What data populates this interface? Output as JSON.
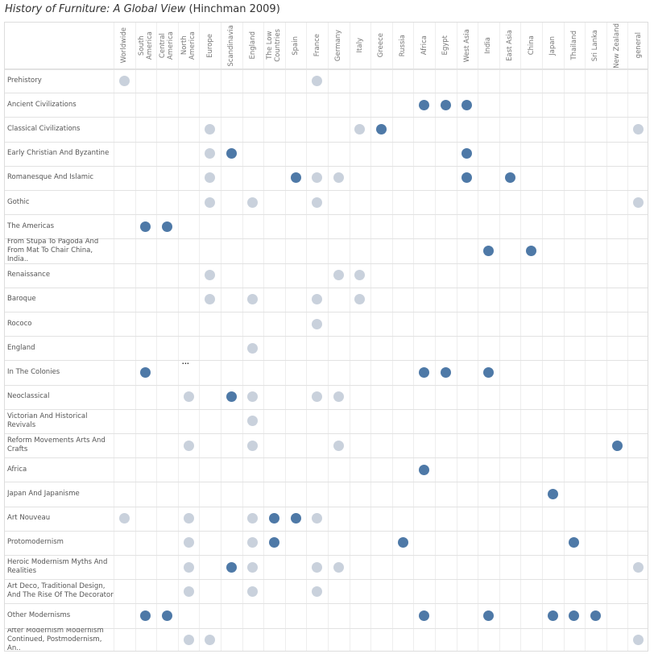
{
  "title": {
    "main": "History of Furniture: A Global View",
    "sub": "(Hinchman 2009)"
  },
  "chart_data": {
    "type": "scatter",
    "subtype": "matrix",
    "colors": {
      "dark": "#4e79a7",
      "light": "#c9d1dc"
    },
    "columns": [
      "Worldwide",
      "South\nAmerica",
      "Central\nAmerica",
      "North\nAmerica",
      "Europe",
      "Scandinavia",
      "England",
      "The Low\nCountries",
      "Spain",
      "France",
      "Germany",
      "Italy",
      "Greece",
      "Russia",
      "Africa",
      "Egypt",
      "West Asia",
      "India",
      "East Asia",
      "China",
      "Japan",
      "Thailand",
      "Sri Lanka",
      "New Zealand",
      "general"
    ],
    "rows": [
      {
        "label": "Prehistory",
        "dots": {
          "0": "light",
          "9": "light"
        }
      },
      {
        "label": "Ancient Civilizations",
        "dots": {
          "14": "dark",
          "15": "dark",
          "16": "dark"
        }
      },
      {
        "label": "Classical Civilizations",
        "dots": {
          "4": "light",
          "11": "light",
          "12": "dark",
          "24": "light"
        }
      },
      {
        "label": "Early Christian And Byzantine",
        "dots": {
          "4": "light",
          "5": "dark",
          "16": "dark"
        }
      },
      {
        "label": "Romanesque And Islamic",
        "dots": {
          "4": "light",
          "8": "dark",
          "9": "light",
          "10": "light",
          "16": "dark",
          "18": "dark"
        }
      },
      {
        "label": "Gothic",
        "dots": {
          "4": "light",
          "6": "light",
          "9": "light",
          "24": "light"
        }
      },
      {
        "label": "The Americas",
        "dots": {
          "1": "dark",
          "2": "dark"
        }
      },
      {
        "label": "From Stupa To Pagoda And From Mat To Chair China, India..",
        "dots": {
          "17": "dark",
          "19": "dark"
        }
      },
      {
        "label": "Renaissance",
        "dots": {
          "4": "light",
          "10": "light",
          "11": "light"
        }
      },
      {
        "label": "Baroque",
        "dots": {
          "4": "light",
          "6": "light",
          "9": "light",
          "11": "light"
        }
      },
      {
        "label": "Rococo",
        "dots": {
          "9": "light"
        }
      },
      {
        "label": "England",
        "dots": {
          "6": "light"
        }
      },
      {
        "label": "In The Colonies",
        "dots": {
          "1": "dark",
          "14": "dark",
          "15": "dark",
          "17": "dark"
        },
        "ellipsis_col": 3,
        "ellipsis": "..."
      },
      {
        "label": "Neoclassical",
        "dots": {
          "3": "light",
          "5": "dark",
          "6": "light",
          "9": "light",
          "10": "light"
        }
      },
      {
        "label": "Victorian And Historical Revivals",
        "dots": {
          "6": "light"
        }
      },
      {
        "label": "Reform Movements Arts And Crafts",
        "dots": {
          "3": "light",
          "6": "light",
          "10": "light",
          "23": "dark"
        }
      },
      {
        "label": "Africa",
        "dots": {
          "14": "dark"
        }
      },
      {
        "label": "Japan And Japanisme",
        "dots": {
          "20": "dark"
        }
      },
      {
        "label": "Art Nouveau",
        "dots": {
          "0": "light",
          "3": "light",
          "6": "light",
          "7": "dark",
          "8": "dark",
          "9": "light"
        }
      },
      {
        "label": "Protomodernism",
        "dots": {
          "3": "light",
          "6": "light",
          "7": "dark",
          "13": "dark",
          "21": "dark"
        }
      },
      {
        "label": "Heroic Modernism Myths And Realities",
        "dots": {
          "3": "light",
          "5": "dark",
          "6": "light",
          "9": "light",
          "10": "light",
          "24": "light"
        }
      },
      {
        "label": "Art Deco, Traditional Design, And The Rise Of The Decorator",
        "dots": {
          "3": "light",
          "6": "light",
          "9": "light"
        }
      },
      {
        "label": "Other Modernisms",
        "dots": {
          "1": "dark",
          "2": "dark",
          "14": "dark",
          "17": "dark",
          "20": "dark",
          "21": "dark",
          "22": "dark"
        }
      },
      {
        "label": "After Modernism Modernism Continued, Postmodernism, An..",
        "dots": {
          "3": "light",
          "4": "light",
          "24": "light"
        }
      }
    ]
  }
}
